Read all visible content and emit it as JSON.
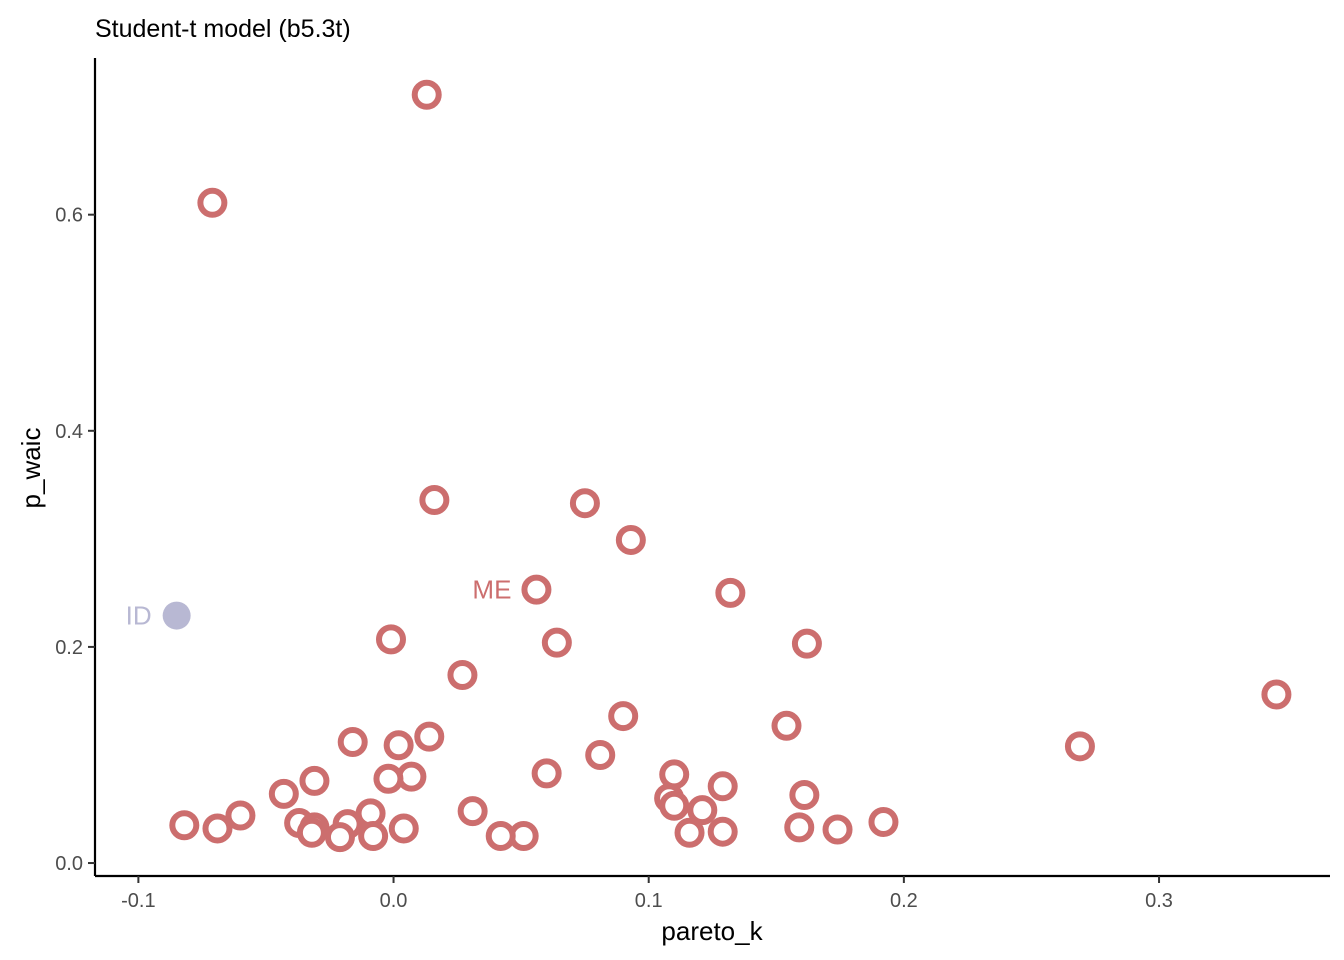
{
  "chart_data": {
    "type": "scatter",
    "title": "Student-t model (b5.3t)",
    "xlabel": "pareto_k",
    "ylabel": "p_waic",
    "xlim": [
      -0.117,
      0.367
    ],
    "ylim": [
      -0.012,
      0.745
    ],
    "xticks": [
      -0.1,
      0.0,
      0.1,
      0.2,
      0.3
    ],
    "xtick_labels": [
      "-0.1",
      "0.0",
      "0.1",
      "0.2",
      "0.3"
    ],
    "yticks": [
      0.0,
      0.2,
      0.4,
      0.6
    ],
    "ytick_labels": [
      "0.0",
      "0.2",
      "0.4",
      "0.6"
    ],
    "grid": false,
    "colors": {
      "open": "#cc6e6e",
      "filled": "#b8b8d3",
      "axis": "#000000",
      "tick_text": "#4d4d4d"
    },
    "series": [
      {
        "style": "open-circle",
        "color": "#cc6e6e",
        "points": [
          {
            "x": 0.013,
            "y": 0.711
          },
          {
            "x": -0.071,
            "y": 0.611
          },
          {
            "x": 0.016,
            "y": 0.336
          },
          {
            "x": 0.075,
            "y": 0.333
          },
          {
            "x": 0.093,
            "y": 0.299
          },
          {
            "x": 0.056,
            "y": 0.253,
            "label": "ME"
          },
          {
            "x": 0.132,
            "y": 0.25
          },
          {
            "x": -0.001,
            "y": 0.207
          },
          {
            "x": 0.064,
            "y": 0.204
          },
          {
            "x": 0.162,
            "y": 0.203
          },
          {
            "x": 0.027,
            "y": 0.174
          },
          {
            "x": 0.346,
            "y": 0.156
          },
          {
            "x": 0.09,
            "y": 0.136
          },
          {
            "x": 0.154,
            "y": 0.127
          },
          {
            "x": 0.014,
            "y": 0.117
          },
          {
            "x": -0.016,
            "y": 0.112
          },
          {
            "x": 0.002,
            "y": 0.109
          },
          {
            "x": 0.269,
            "y": 0.108
          },
          {
            "x": 0.081,
            "y": 0.1
          },
          {
            "x": 0.06,
            "y": 0.083
          },
          {
            "x": 0.11,
            "y": 0.082
          },
          {
            "x": 0.007,
            "y": 0.08
          },
          {
            "x": -0.002,
            "y": 0.078
          },
          {
            "x": -0.031,
            "y": 0.076
          },
          {
            "x": 0.129,
            "y": 0.071
          },
          {
            "x": -0.043,
            "y": 0.064
          },
          {
            "x": 0.161,
            "y": 0.063
          },
          {
            "x": 0.108,
            "y": 0.06
          },
          {
            "x": 0.11,
            "y": 0.053
          },
          {
            "x": 0.121,
            "y": 0.049
          },
          {
            "x": 0.031,
            "y": 0.048
          },
          {
            "x": -0.009,
            "y": 0.046
          },
          {
            "x": -0.06,
            "y": 0.044
          },
          {
            "x": 0.192,
            "y": 0.038
          },
          {
            "x": -0.037,
            "y": 0.037
          },
          {
            "x": -0.018,
            "y": 0.036
          },
          {
            "x": -0.082,
            "y": 0.035
          },
          {
            "x": -0.031,
            "y": 0.033
          },
          {
            "x": 0.159,
            "y": 0.033
          },
          {
            "x": 0.004,
            "y": 0.032
          },
          {
            "x": -0.069,
            "y": 0.032
          },
          {
            "x": 0.174,
            "y": 0.031
          },
          {
            "x": 0.129,
            "y": 0.029
          },
          {
            "x": -0.032,
            "y": 0.028
          },
          {
            "x": 0.116,
            "y": 0.028
          },
          {
            "x": 0.051,
            "y": 0.025
          },
          {
            "x": -0.008,
            "y": 0.025
          },
          {
            "x": 0.042,
            "y": 0.025
          },
          {
            "x": -0.021,
            "y": 0.024
          }
        ]
      },
      {
        "style": "filled-circle",
        "color": "#b8b8d3",
        "points": [
          {
            "x": -0.085,
            "y": 0.229,
            "label": "ID"
          }
        ]
      }
    ]
  }
}
